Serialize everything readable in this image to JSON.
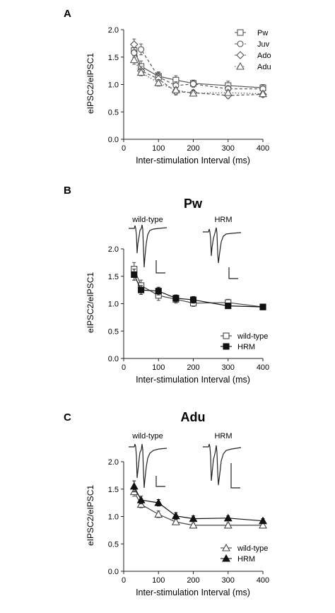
{
  "colors": {
    "axis": "#222222",
    "pw": "#555555",
    "juv": "#555555",
    "ado": "#555555",
    "adu": "#555555",
    "wildtype": "#444444",
    "hrm": "#111111",
    "trace": "#222222"
  },
  "chart_data": [
    {
      "type": "line",
      "panel_label": "A",
      "title": "",
      "xlabel": "Inter-stimulation Interval (ms)",
      "ylabel": "eIPSC2/eIPSC1",
      "xlim": [
        0,
        400
      ],
      "ylim": [
        0.0,
        2.0
      ],
      "xticks": [
        "0",
        "100",
        "200",
        "300",
        "400"
      ],
      "yticks": [
        "0.0",
        "0.5",
        "1.0",
        "1.5",
        "2.0"
      ],
      "grid": false,
      "legend_position": "top-right",
      "x": [
        30,
        50,
        100,
        150,
        200,
        300,
        400
      ],
      "series": [
        {
          "name": "Pw",
          "marker": "square",
          "dash": "solid",
          "values": [
            1.62,
            1.33,
            1.15,
            1.08,
            1.02,
            0.98,
            0.94
          ],
          "err": [
            0.12,
            0.1,
            0.08,
            0.08,
            0.06,
            0.08,
            0.06
          ]
        },
        {
          "name": "Juv",
          "marker": "circle",
          "dash": "dashed",
          "values": [
            1.58,
            1.64,
            1.14,
            0.98,
            1.01,
            0.92,
            0.92
          ],
          "err": [
            0.12,
            0.1,
            0.08,
            0.07,
            0.06,
            0.06,
            0.05
          ]
        },
        {
          "name": "Ado",
          "marker": "diamond",
          "dash": "dashed",
          "values": [
            1.73,
            1.25,
            1.1,
            0.87,
            0.85,
            0.8,
            0.82
          ],
          "err": [
            0.1,
            0.08,
            0.07,
            0.06,
            0.05,
            0.05,
            0.05
          ]
        },
        {
          "name": "Adu",
          "marker": "triangle",
          "dash": "dotted",
          "values": [
            1.45,
            1.22,
            1.03,
            0.9,
            0.84,
            0.85,
            0.83
          ],
          "err": [
            0.08,
            0.06,
            0.06,
            0.05,
            0.05,
            0.05,
            0.05
          ]
        }
      ]
    },
    {
      "type": "line",
      "panel_label": "B",
      "title": "Pw",
      "xlabel": "Inter-stimulation Interval (ms)",
      "ylabel": "eIPSC2/eIPSC1",
      "xlim": [
        0,
        400
      ],
      "ylim": [
        0.0,
        2.0
      ],
      "xticks": [
        "0",
        "100",
        "200",
        "300",
        "400"
      ],
      "yticks": [
        "0.0",
        "0.5",
        "1.0",
        "1.5",
        "2.0"
      ],
      "grid": false,
      "legend_position": "bottom-right",
      "trace_labels": [
        "wild-type",
        "HRM"
      ],
      "x": [
        30,
        50,
        100,
        150,
        200,
        300,
        400
      ],
      "series": [
        {
          "name": "wild-type",
          "marker": "square",
          "filled": false,
          "values": [
            1.63,
            1.33,
            1.15,
            1.08,
            1.01,
            1.02,
            0.94
          ],
          "err": [
            0.12,
            0.1,
            0.09,
            0.07,
            0.06,
            0.06,
            0.05
          ]
        },
        {
          "name": "HRM",
          "marker": "square",
          "filled": true,
          "values": [
            1.53,
            1.25,
            1.23,
            1.1,
            1.07,
            0.96,
            0.94
          ],
          "err": [
            0.1,
            0.08,
            0.07,
            0.06,
            0.06,
            0.05,
            0.05
          ]
        }
      ]
    },
    {
      "type": "line",
      "panel_label": "C",
      "title": "Adu",
      "xlabel": "Inter-stimulation Interval (ms)",
      "ylabel": "eIPSC2/eIPSC1",
      "xlim": [
        0,
        400
      ],
      "ylim": [
        0.0,
        2.0
      ],
      "xticks": [
        "0",
        "100",
        "200",
        "300",
        "400"
      ],
      "yticks": [
        "0.0",
        "0.5",
        "1.0",
        "1.5",
        "2.0"
      ],
      "grid": false,
      "legend_position": "bottom-right",
      "trace_labels": [
        "wild-type",
        "HRM"
      ],
      "x": [
        30,
        50,
        100,
        150,
        200,
        300,
        400
      ],
      "series": [
        {
          "name": "wild-type",
          "marker": "triangle",
          "filled": false,
          "values": [
            1.45,
            1.22,
            1.04,
            0.9,
            0.84,
            0.84,
            0.84
          ],
          "err": [
            0.08,
            0.06,
            0.06,
            0.05,
            0.04,
            0.04,
            0.04
          ]
        },
        {
          "name": "HRM",
          "marker": "triangle",
          "filled": true,
          "values": [
            1.55,
            1.3,
            1.25,
            1.01,
            0.96,
            0.97,
            0.92
          ],
          "err": [
            0.1,
            0.07,
            0.06,
            0.06,
            0.05,
            0.04,
            0.04
          ]
        }
      ]
    }
  ]
}
